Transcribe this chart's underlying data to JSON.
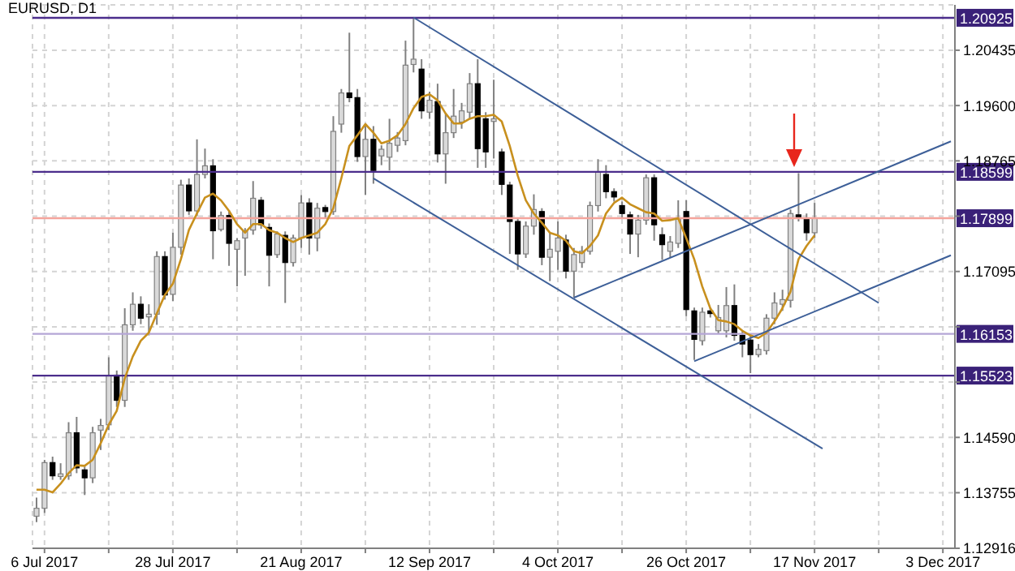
{
  "chart_data": {
    "type": "candlestick",
    "title": "EURUSD, D1",
    "categories": [
      null,
      "6 Jul 2017",
      null,
      null,
      null,
      null,
      null,
      null,
      null,
      null,
      null,
      null,
      null,
      null,
      null,
      null,
      null,
      "28 Jul 2017",
      null,
      null,
      null,
      null,
      null,
      null,
      null,
      null,
      null,
      null,
      null,
      null,
      null,
      null,
      null,
      "21 Aug 2017",
      null,
      null,
      null,
      null,
      null,
      null,
      null,
      null,
      null,
      null,
      null,
      null,
      null,
      null,
      null,
      "12 Sep 2017",
      null,
      null,
      null,
      null,
      null,
      null,
      null,
      null,
      null,
      null,
      null,
      null,
      null,
      null,
      null,
      "4 Oct 2017",
      null,
      null,
      null,
      null,
      null,
      null,
      null,
      null,
      null,
      null,
      null,
      null,
      null,
      null,
      null,
      "26 Oct 2017",
      null,
      null,
      null,
      null,
      null,
      null,
      null,
      null,
      null,
      null,
      null,
      null,
      null,
      null,
      null,
      "17 Nov 2017",
      null,
      null,
      null,
      null,
      null,
      null,
      null,
      null,
      null,
      null,
      null,
      null,
      null,
      null,
      null,
      "3 Dec 2017",
      null
    ],
    "ohlc": [
      [
        1.134,
        1.1368,
        1.1331,
        1.1352
      ],
      [
        1.1352,
        1.1425,
        1.1345,
        1.1421
      ],
      [
        1.1421,
        1.143,
        1.1395,
        1.1401
      ],
      [
        1.14,
        1.142,
        1.1395,
        1.1404
      ],
      [
        1.1401,
        1.1482,
        1.1395,
        1.1466
      ],
      [
        1.1466,
        1.149,
        1.1405,
        1.1413
      ],
      [
        1.141,
        1.1415,
        1.1372,
        1.1398
      ],
      [
        1.1398,
        1.1475,
        1.139,
        1.1466
      ],
      [
        1.147,
        1.1487,
        1.144,
        1.1477
      ],
      [
        1.1478,
        1.158,
        1.147,
        1.1552
      ],
      [
        1.1553,
        1.156,
        1.1505,
        1.1515
      ],
      [
        1.1515,
        1.1654,
        1.1505,
        1.1629
      ],
      [
        1.1629,
        1.1678,
        1.162,
        1.166
      ],
      [
        1.166,
        1.1672,
        1.163,
        1.1639
      ],
      [
        1.1641,
        1.166,
        1.1613,
        1.1645
      ],
      [
        1.1645,
        1.174,
        1.1629,
        1.1732
      ],
      [
        1.1732,
        1.174,
        1.1667,
        1.1674
      ],
      [
        1.1675,
        1.1768,
        1.1665,
        1.1746
      ],
      [
        1.1746,
        1.1848,
        1.1735,
        1.184
      ],
      [
        1.184,
        1.185,
        1.1795,
        1.1801
      ],
      [
        1.1801,
        1.1909,
        1.1793,
        1.1856
      ],
      [
        1.1856,
        1.1895,
        1.185,
        1.1869
      ],
      [
        1.1869,
        1.1879,
        1.1728,
        1.1771
      ],
      [
        1.1773,
        1.18,
        1.177,
        1.1794
      ],
      [
        1.1794,
        1.1802,
        1.1718,
        1.1752
      ],
      [
        1.1743,
        1.176,
        1.1687,
        1.1756
      ],
      [
        1.176,
        1.1775,
        1.1703,
        1.177
      ],
      [
        1.1772,
        1.1846,
        1.1765,
        1.182
      ],
      [
        1.1817,
        1.1822,
        1.1774,
        1.178
      ],
      [
        1.1776,
        1.1782,
        1.1687,
        1.1734
      ],
      [
        1.1735,
        1.177,
        1.173,
        1.1766
      ],
      [
        1.1764,
        1.177,
        1.1662,
        1.1723
      ],
      [
        1.1723,
        1.1765,
        1.1717,
        1.176
      ],
      [
        1.176,
        1.1825,
        1.1745,
        1.1813
      ],
      [
        1.1813,
        1.182,
        1.1735,
        1.176
      ],
      [
        1.176,
        1.1813,
        1.174,
        1.1805
      ],
      [
        1.1806,
        1.181,
        1.179,
        1.18
      ],
      [
        1.18,
        1.1944,
        1.1795,
        1.1921
      ],
      [
        1.1932,
        1.1985,
        1.1919,
        1.1979
      ],
      [
        1.1979,
        1.207,
        1.1965,
        1.1972
      ],
      [
        1.1972,
        1.1985,
        1.1875,
        1.1883
      ],
      [
        1.1883,
        1.1933,
        1.1825,
        1.1909
      ],
      [
        1.1909,
        1.1929,
        1.1842,
        1.1862
      ],
      [
        1.1884,
        1.19,
        1.187,
        1.1894
      ],
      [
        1.1882,
        1.194,
        1.1862,
        1.1903
      ],
      [
        1.19,
        1.192,
        1.189,
        1.1911
      ],
      [
        1.1907,
        1.2058,
        1.19,
        1.2021
      ],
      [
        1.2022,
        1.2091,
        1.201,
        1.203
      ],
      [
        1.2015,
        1.203,
        1.194,
        1.1952
      ],
      [
        1.195,
        1.1981,
        1.194,
        1.1968
      ],
      [
        1.1966,
        1.1993,
        1.1874,
        1.1887
      ],
      [
        1.1887,
        1.1948,
        1.1842,
        1.1919
      ],
      [
        1.1919,
        1.1985,
        1.1911,
        1.1944
      ],
      [
        1.1935,
        1.1964,
        1.1925,
        1.1952
      ],
      [
        1.195,
        1.2009,
        1.194,
        1.1993
      ],
      [
        1.1993,
        1.203,
        1.1866,
        1.1895
      ],
      [
        1.194,
        1.195,
        1.1866,
        1.189
      ],
      [
        1.1936,
        1.1999,
        1.188,
        1.194
      ],
      [
        1.189,
        1.1895,
        1.1825,
        1.1841
      ],
      [
        1.184,
        1.1845,
        1.1736,
        1.1785
      ],
      [
        1.1785,
        1.179,
        1.1712,
        1.1736
      ],
      [
        1.1736,
        1.1785,
        1.173,
        1.1778
      ],
      [
        1.1778,
        1.1826,
        1.1765,
        1.1803
      ],
      [
        1.18,
        1.1805,
        1.1719,
        1.1731
      ],
      [
        1.1731,
        1.1768,
        1.1695,
        1.1743
      ],
      [
        1.174,
        1.1785,
        1.1712,
        1.176
      ],
      [
        1.1757,
        1.1765,
        1.1699,
        1.171
      ],
      [
        1.171,
        1.1745,
        1.167,
        1.1735
      ],
      [
        1.1723,
        1.1748,
        1.1715,
        1.174
      ],
      [
        1.174,
        1.1815,
        1.1735,
        1.1809
      ],
      [
        1.1809,
        1.1879,
        1.18,
        1.186
      ],
      [
        1.1856,
        1.187,
        1.182,
        1.183
      ],
      [
        1.183,
        1.1835,
        1.1815,
        1.1822
      ],
      [
        1.1809,
        1.1815,
        1.179,
        1.1797
      ],
      [
        1.1795,
        1.18,
        1.1736,
        1.1766
      ],
      [
        1.1766,
        1.1795,
        1.1731,
        1.1787
      ],
      [
        1.1787,
        1.1856,
        1.178,
        1.1851
      ],
      [
        1.1851,
        1.1856,
        1.1756,
        1.178
      ],
      [
        1.1765,
        1.1776,
        1.1727,
        1.175
      ],
      [
        1.174,
        1.1763,
        1.173,
        1.1754
      ],
      [
        1.1752,
        1.1817,
        1.1745,
        1.1789
      ],
      [
        1.18,
        1.1817,
        1.1642,
        1.1652
      ],
      [
        1.165,
        1.1655,
        1.1576,
        1.1607
      ],
      [
        1.1605,
        1.1655,
        1.1598,
        1.1648
      ],
      [
        1.165,
        1.1655,
        1.164,
        1.1646
      ],
      [
        1.162,
        1.1659,
        1.1615,
        1.164
      ],
      [
        1.162,
        1.1686,
        1.161,
        1.1658
      ],
      [
        1.1658,
        1.169,
        1.1605,
        1.1613
      ],
      [
        1.1613,
        1.162,
        1.158,
        1.16
      ],
      [
        1.1606,
        1.1615,
        1.1556,
        1.1584
      ],
      [
        1.1584,
        1.16,
        1.158,
        1.1592
      ],
      [
        1.159,
        1.1645,
        1.1584,
        1.1639
      ],
      [
        1.1639,
        1.1678,
        1.163,
        1.1662
      ],
      [
        1.166,
        1.1682,
        1.165,
        1.1667
      ],
      [
        1.1666,
        1.1803,
        1.1655,
        1.1797
      ],
      [
        1.1795,
        1.1858,
        1.1785,
        1.179
      ],
      [
        1.1788,
        1.1797,
        1.1756,
        1.1768
      ],
      [
        1.1768,
        1.1813,
        1.176,
        1.179
      ],
      null,
      null,
      null,
      null,
      null,
      null,
      null,
      null,
      null,
      null,
      null,
      null,
      null,
      null,
      null,
      null,
      null
    ],
    "series": [
      {
        "type": "line",
        "color": "#c8901e",
        "values": [
          1.138,
          1.138,
          1.1376,
          1.1389,
          1.1405,
          1.1417,
          1.1416,
          1.1425,
          1.145,
          1.1478,
          1.1499,
          1.1548,
          1.1581,
          1.1605,
          1.1617,
          1.1646,
          1.1674,
          1.1691,
          1.1728,
          1.1772,
          1.1797,
          1.1821,
          1.1827,
          1.1817,
          1.1801,
          1.1781,
          1.1768,
          1.1781,
          1.1781,
          1.1772,
          1.1768,
          1.176,
          1.1754,
          1.176,
          1.1764,
          1.1768,
          1.1781,
          1.1805,
          1.185,
          1.1899,
          1.1915,
          1.1932,
          1.1919,
          1.1903,
          1.1907,
          1.1915,
          1.1932,
          1.1956,
          1.1973,
          1.1977,
          1.1968,
          1.1948,
          1.1933,
          1.1933,
          1.194,
          1.1944,
          1.1944,
          1.1946,
          1.1936,
          1.1899,
          1.1854,
          1.1817,
          1.1797,
          1.1783,
          1.1768,
          1.1764,
          1.1756,
          1.174,
          1.1737,
          1.1748,
          1.1764,
          1.1797,
          1.1813,
          1.1821,
          1.1811,
          1.1805,
          1.1799,
          1.1797,
          1.1786,
          1.1787,
          1.179,
          1.176,
          1.1728,
          1.1687,
          1.1654,
          1.1636,
          1.1634,
          1.163,
          1.162,
          1.1613,
          1.1609,
          1.1617,
          1.1634,
          1.1654,
          1.1679,
          1.1728,
          1.1748,
          1.1764,
          null,
          null,
          null,
          null,
          null,
          null,
          null,
          null,
          null,
          null,
          null,
          null,
          null,
          null,
          null,
          null,
          null
        ]
      },
      {
        "type": "line",
        "color": "#3d5f98",
        "values": [
          null,
          null,
          null,
          null,
          null,
          null,
          null,
          null,
          null,
          null,
          null,
          null,
          null,
          null,
          null,
          null,
          null,
          null,
          null,
          null,
          null,
          null,
          null,
          null,
          null,
          null,
          null,
          null,
          null,
          null,
          null,
          null,
          null,
          null,
          null,
          null,
          null,
          null,
          null,
          null,
          null,
          null,
          null,
          null,
          null,
          null,
          null,
          1.2093,
          null,
          null,
          null,
          null,
          null,
          null,
          null,
          null,
          null,
          null,
          null,
          null,
          null,
          null,
          null,
          null,
          null,
          null,
          null,
          null,
          null,
          null,
          null,
          null,
          null,
          null,
          null,
          null,
          null,
          null,
          null,
          null,
          null,
          null,
          null,
          null,
          null,
          null,
          null,
          null,
          null,
          null,
          null,
          null,
          null,
          null,
          null,
          null,
          null,
          null,
          null,
          null,
          null,
          null,
          null,
          null,
          null,
          1.1662,
          null,
          null,
          null,
          null,
          null,
          null,
          null,
          null,
          null
        ]
      },
      {
        "type": "line",
        "color": "#3d5f98",
        "values": [
          null,
          null,
          null,
          null,
          null,
          null,
          null,
          null,
          null,
          null,
          null,
          null,
          null,
          null,
          null,
          null,
          null,
          null,
          null,
          null,
          null,
          null,
          null,
          null,
          null,
          null,
          null,
          null,
          null,
          null,
          null,
          null,
          null,
          null,
          null,
          null,
          null,
          null,
          null,
          null,
          null,
          null,
          1.185,
          null,
          null,
          null,
          null,
          null,
          null,
          null,
          null,
          null,
          null,
          null,
          null,
          null,
          null,
          null,
          null,
          null,
          null,
          null,
          null,
          null,
          null,
          null,
          null,
          null,
          null,
          null,
          null,
          null,
          null,
          null,
          null,
          null,
          null,
          null,
          null,
          null,
          null,
          null,
          null,
          null,
          null,
          null,
          null,
          null,
          null,
          null,
          null,
          null,
          null,
          null,
          null,
          null,
          null,
          null,
          1.1442,
          null,
          null,
          null,
          null,
          null,
          null,
          null,
          null,
          null,
          null,
          null,
          null,
          null,
          null,
          null,
          null
        ]
      },
      {
        "type": "line",
        "color": "#3d5f98",
        "values": [
          null,
          null,
          null,
          null,
          null,
          null,
          null,
          null,
          null,
          null,
          null,
          null,
          null,
          null,
          null,
          null,
          null,
          null,
          null,
          null,
          null,
          null,
          null,
          null,
          null,
          null,
          null,
          null,
          null,
          null,
          null,
          null,
          null,
          null,
          null,
          null,
          null,
          null,
          null,
          null,
          null,
          null,
          null,
          null,
          null,
          null,
          null,
          null,
          null,
          null,
          null,
          null,
          null,
          null,
          null,
          null,
          null,
          null,
          null,
          null,
          null,
          null,
          null,
          null,
          null,
          null,
          null,
          1.167,
          null,
          null,
          null,
          null,
          null,
          null,
          null,
          null,
          null,
          null,
          null,
          null,
          null,
          null,
          null,
          null,
          null,
          null,
          null,
          null,
          null,
          null,
          null,
          null,
          null,
          null,
          null,
          null,
          null,
          null,
          null,
          null,
          null,
          null,
          null,
          null,
          null,
          null,
          null,
          null,
          null,
          null,
          null,
          null,
          null,
          null,
          1.1906
        ]
      },
      {
        "type": "line",
        "color": "#3d5f98",
        "values": [
          null,
          null,
          null,
          null,
          null,
          null,
          null,
          null,
          null,
          null,
          null,
          null,
          null,
          null,
          null,
          null,
          null,
          null,
          null,
          null,
          null,
          null,
          null,
          null,
          null,
          null,
          null,
          null,
          null,
          null,
          null,
          null,
          null,
          null,
          null,
          null,
          null,
          null,
          null,
          null,
          null,
          null,
          null,
          null,
          null,
          null,
          null,
          null,
          null,
          null,
          null,
          null,
          null,
          null,
          null,
          null,
          null,
          null,
          null,
          null,
          null,
          null,
          null,
          null,
          null,
          null,
          null,
          null,
          null,
          null,
          null,
          null,
          null,
          null,
          null,
          null,
          null,
          null,
          null,
          null,
          null,
          null,
          1.1574,
          null,
          null,
          null,
          null,
          null,
          null,
          null,
          null,
          null,
          null,
          null,
          null,
          null,
          null,
          null,
          null,
          null,
          null,
          null,
          null,
          null,
          null,
          null,
          null,
          null,
          null,
          null,
          null,
          null,
          null,
          null,
          1.1734
        ]
      }
    ],
    "ylim": [
      1.12916,
      1.2112
    ],
    "yticks": [
      1.12916,
      1.13755,
      {
        "value": 1.1459,
        "label": "1.14590"
      },
      {
        "value": 1.15425,
        "label": null
      },
      {
        "value": 1.1626,
        "label": null
      },
      1.17095,
      {
        "value": 1.1793,
        "label": null
      },
      1.18765,
      {
        "value": 1.196,
        "label": "1.19600"
      },
      1.20435
    ],
    "grid": true,
    "marker": "none",
    "ref_lines": [
      {
        "axis": "y",
        "value": 1.20925,
        "label": "1.20925",
        "color": "#4b2d8c"
      },
      {
        "axis": "y",
        "value": 1.18599,
        "label": "1.18599",
        "color": "#4b2d8c"
      },
      {
        "axis": "y",
        "value": 1.17899,
        "label": "1.17899",
        "color": "#f4a49c"
      },
      {
        "axis": "y",
        "value": 1.16153,
        "label": "1.16153",
        "color": "#b5a6d6"
      },
      {
        "axis": "y",
        "value": 1.15523,
        "label": "1.15523",
        "color": "#4b2d8c"
      }
    ]
  }
}
